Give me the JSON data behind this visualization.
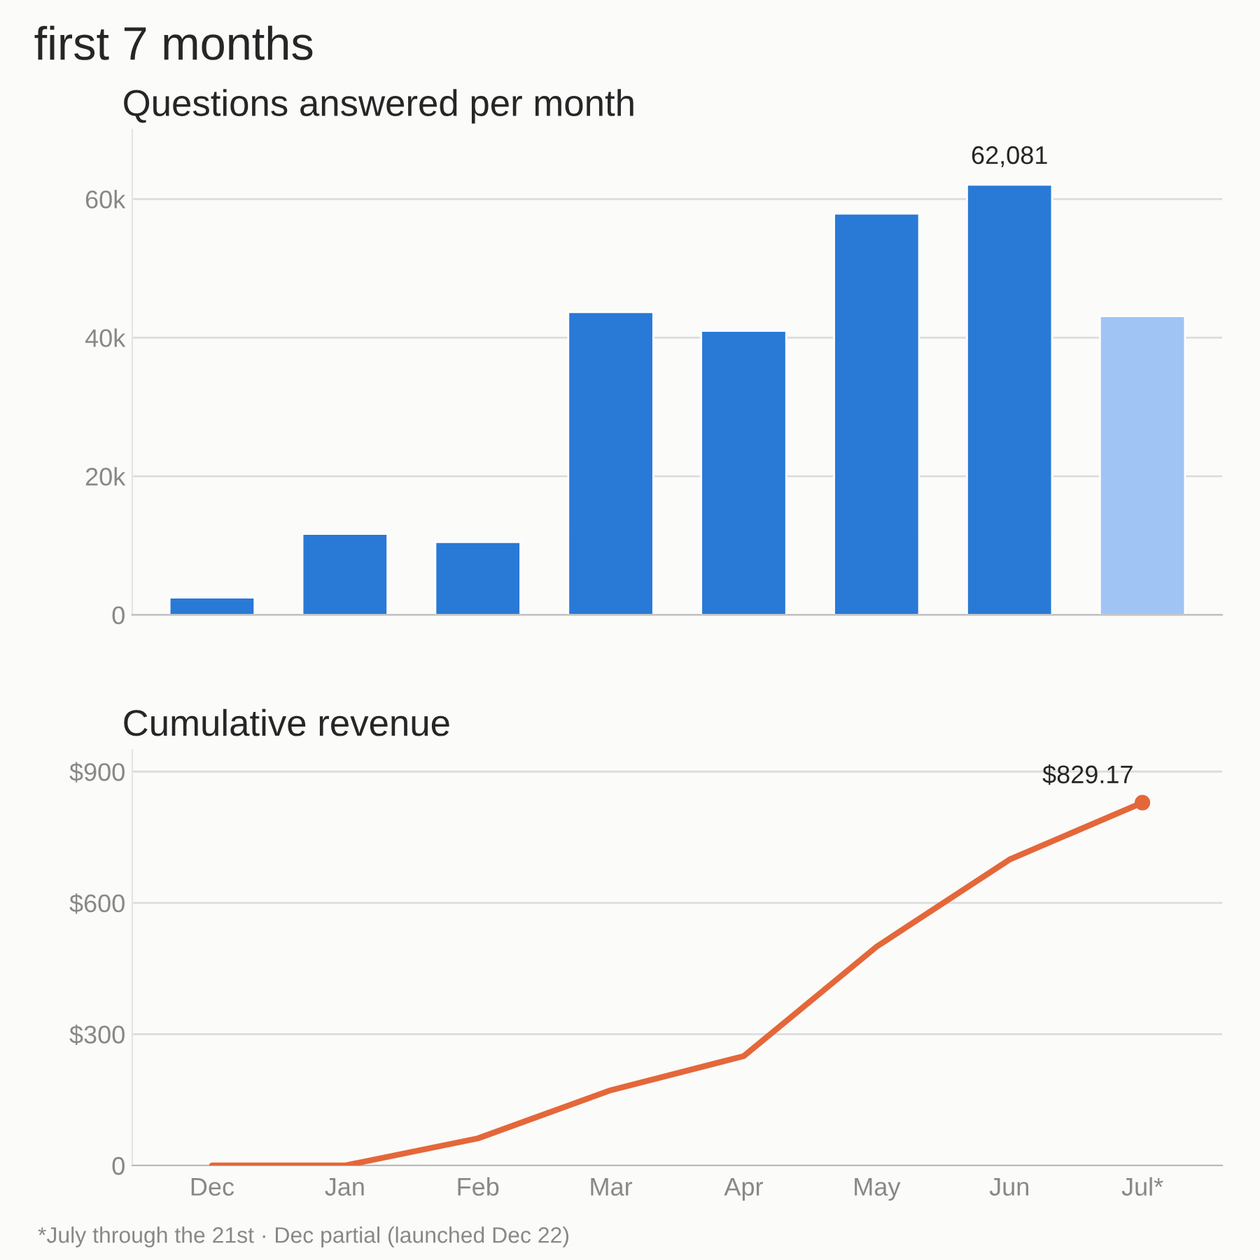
{
  "chart_data": [
    {
      "type": "bar",
      "title": "first 7 months",
      "subtitle": "Questions answered per month",
      "categories": [
        null,
        null,
        null,
        null,
        null,
        null,
        null,
        null
      ],
      "values": [
        2500,
        11700,
        10500,
        43700,
        41000,
        57900,
        62081,
        43100
      ],
      "colors": [
        "#2979d6",
        "#2979d6",
        "#2979d6",
        "#2979d6",
        "#2979d6",
        "#2979d6",
        "#2979d6",
        "#a0c4f4"
      ],
      "value_labels": [
        null,
        null,
        null,
        null,
        null,
        null,
        "62,081",
        null
      ],
      "ylim": [
        0,
        70000
      ],
      "yticks": [
        {
          "value": 0,
          "label": "0"
        },
        {
          "value": 20000,
          "label": "20k"
        },
        {
          "value": 40000,
          "label": "40k"
        },
        {
          "value": 60000,
          "label": "60k"
        }
      ],
      "grid": "y",
      "tick_labels": "y"
    },
    {
      "type": "line",
      "title": "Cumulative revenue",
      "categories": [
        "Dec",
        "Jan",
        "Feb",
        "Mar",
        "Apr",
        "May",
        "Jun",
        "Jul*"
      ],
      "series": [
        {
          "color": "#e4673a",
          "values": [
            0,
            0,
            62,
            172,
            250,
            500,
            699,
            829.17
          ],
          "value_labels": [
            null,
            null,
            null,
            null,
            null,
            null,
            null,
            "$829.17"
          ]
        }
      ],
      "ylim": [
        0,
        950
      ],
      "yticks": [
        {
          "value": 0,
          "label": "0"
        },
        {
          "value": 300,
          "label": "$300"
        },
        {
          "value": 600,
          "label": "$600"
        },
        {
          "value": 900,
          "label": "$900"
        }
      ],
      "grid": "y",
      "annotations": [
        "*July through the 21st · Dec partial (launched Dec 22)"
      ]
    }
  ]
}
